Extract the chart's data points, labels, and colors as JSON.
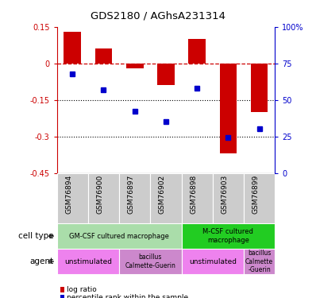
{
  "title": "GDS2180 / AGhsA231314",
  "samples": [
    "GSM76894",
    "GSM76900",
    "GSM76897",
    "GSM76902",
    "GSM76898",
    "GSM76903",
    "GSM76899"
  ],
  "log_ratio": [
    0.13,
    0.06,
    -0.02,
    -0.09,
    0.1,
    -0.37,
    -0.2
  ],
  "percentile_rank": [
    68,
    57,
    42,
    35,
    58,
    24,
    30
  ],
  "ylim_left": [
    -0.45,
    0.15
  ],
  "ylim_right": [
    0,
    100
  ],
  "yticks_left": [
    0.15,
    0,
    -0.15,
    -0.3,
    -0.45
  ],
  "yticks_right": [
    100,
    75,
    50,
    25,
    0
  ],
  "hlines": [
    -0.15,
    -0.3
  ],
  "bar_color": "#cc0000",
  "dot_color": "#0000cc",
  "dashed_color": "#cc0000",
  "bar_width": 0.55,
  "cell_type_row": [
    {
      "label": "GM-CSF cultured macrophage",
      "color": "#aaddaa",
      "span": [
        0,
        4
      ]
    },
    {
      "label": "M-CSF cultured\nmacrophage",
      "color": "#22cc22",
      "span": [
        4,
        7
      ]
    }
  ],
  "agent_row": [
    {
      "label": "unstimulated",
      "color": "#ee82ee",
      "span": [
        0,
        2
      ]
    },
    {
      "label": "bacillus\nCalmette-Guerin",
      "color": "#cc88cc",
      "span": [
        2,
        4
      ],
      "small_text": true
    },
    {
      "label": "unstimulated",
      "color": "#ee82ee",
      "span": [
        4,
        6
      ]
    },
    {
      "label": "bacillus\nCalmette\n-Guerin",
      "color": "#cc88cc",
      "span": [
        6,
        7
      ],
      "small_text": true
    }
  ],
  "left_label_color": "#cc0000",
  "right_label_color": "#0000cc",
  "xtick_bg_color": "#cccccc",
  "legend_items": [
    {
      "color": "#cc0000",
      "label": "log ratio"
    },
    {
      "color": "#0000cc",
      "label": "percentile rank within the sample"
    }
  ]
}
